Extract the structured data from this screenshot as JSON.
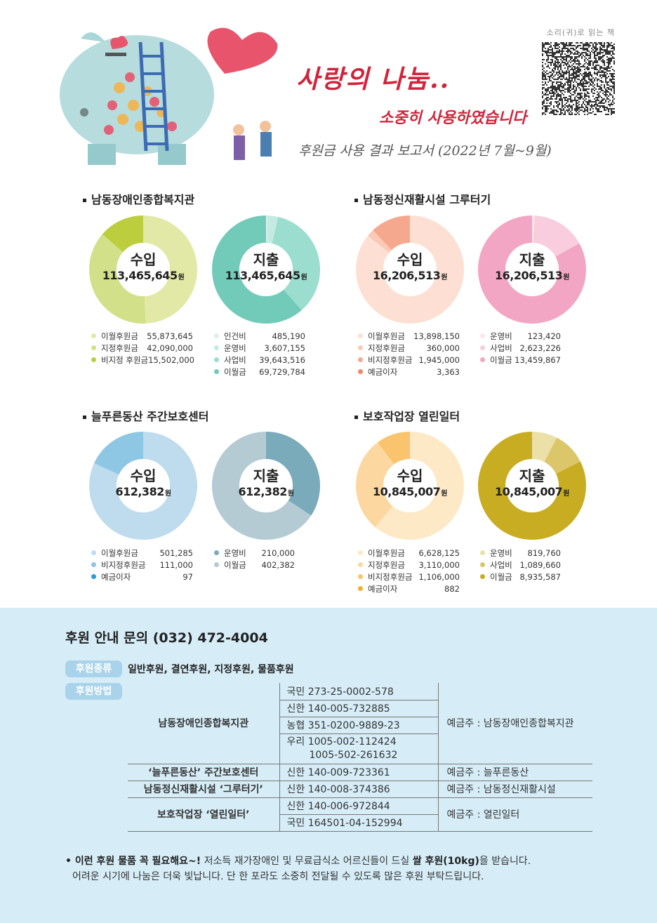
{
  "header": {
    "title": "사랑의 나눔..",
    "subtitle": "소중히 사용하였습니다",
    "report": "후원금 사용 결과 보고서 (2022년 7월~9월)",
    "qr_label": "소리(귀)로 읽는 책"
  },
  "sections": [
    {
      "title": "남동장애인종합복지관",
      "income": {
        "label": "수입",
        "amount": "113,465,645",
        "unit": "원",
        "items": [
          {
            "name": "이월후원금",
            "value": "55,873,645",
            "color": "#e2e9a6"
          },
          {
            "name": "지정후원금",
            "value": "42,090,000",
            "color": "#d2e08a"
          },
          {
            "name": "비지정 후원금",
            "value": "15,502,000",
            "color": "#bccd3d"
          }
        ]
      },
      "expense": {
        "label": "지출",
        "amount": "113,465,645",
        "unit": "원",
        "items": [
          {
            "name": "인건비",
            "value": "485,190",
            "color": "#daf1ec"
          },
          {
            "name": "운영비",
            "value": "3,607,155",
            "color": "#c4ebe2"
          },
          {
            "name": "사업비",
            "value": "39,643,516",
            "color": "#9bded0"
          },
          {
            "name": "이월금",
            "value": "69,729,784",
            "color": "#72cbb9"
          }
        ]
      }
    },
    {
      "title": "남동정신재활시설 그루터기",
      "income": {
        "label": "수입",
        "amount": "16,206,513",
        "unit": "원",
        "items": [
          {
            "name": "이월후원금",
            "value": "13,898,150",
            "color": "#fde0d3"
          },
          {
            "name": "지정후원금",
            "value": "360,000",
            "color": "#fbcab6"
          },
          {
            "name": "비지정후원금",
            "value": "1,945,000",
            "color": "#f6a88f"
          },
          {
            "name": "예금이자",
            "value": "3,363",
            "color": "#ef8769"
          }
        ]
      },
      "expense": {
        "label": "지출",
        "amount": "16,206,513",
        "unit": "원",
        "items": [
          {
            "name": "운영비",
            "value": "123,420",
            "color": "#fde6ee"
          },
          {
            "name": "사업비",
            "value": "2,623,226",
            "color": "#f9cddd"
          },
          {
            "name": "이월금",
            "value": "13,459,867",
            "color": "#f3a6c3"
          }
        ]
      }
    },
    {
      "title": "늘푸른동산 주간보호센터",
      "income": {
        "label": "수입",
        "amount": "612,382",
        "unit": "원",
        "items": [
          {
            "name": "이월후원금",
            "value": "501,285",
            "color": "#bfdcee"
          },
          {
            "name": "비지정후원금",
            "value": "111,000",
            "color": "#8ec7e3"
          },
          {
            "name": "예금이자",
            "value": "97",
            "color": "#2c9ed4"
          }
        ]
      },
      "expense": {
        "label": "지출",
        "amount": "612,382",
        "unit": "원",
        "items": [
          {
            "name": "운영비",
            "value": "210,000",
            "color": "#7aabbb"
          },
          {
            "name": "이월금",
            "value": "402,382",
            "color": "#b4cbd3"
          }
        ]
      }
    },
    {
      "title": "보호작업장 열린일터",
      "income": {
        "label": "수입",
        "amount": "10,845,007",
        "unit": "원",
        "items": [
          {
            "name": "이월후원금",
            "value": "6,628,125",
            "color": "#fde9c5"
          },
          {
            "name": "지정후원금",
            "value": "3,110,000",
            "color": "#fcd8a0"
          },
          {
            "name": "비지정후원금",
            "value": "1,106,000",
            "color": "#f9c46d"
          },
          {
            "name": "예금이자",
            "value": "882",
            "color": "#f4ad2f"
          }
        ]
      },
      "expense": {
        "label": "지출",
        "amount": "10,845,007",
        "unit": "원",
        "items": [
          {
            "name": "운영비",
            "value": "819,760",
            "color": "#ece0a9"
          },
          {
            "name": "사업비",
            "value": "1,089,660",
            "color": "#dcc66a"
          },
          {
            "name": "이월금",
            "value": "8,935,587",
            "color": "#c8ad23"
          }
        ]
      }
    }
  ],
  "chart_data": [
    {
      "type": "pie",
      "title": "남동장애인종합복지관 수입",
      "labels": [
        "이월후원금",
        "지정후원금",
        "비지정 후원금"
      ],
      "values": [
        55873645,
        42090000,
        15502000
      ]
    },
    {
      "type": "pie",
      "title": "남동장애인종합복지관 지출",
      "labels": [
        "인건비",
        "운영비",
        "사업비",
        "이월금"
      ],
      "values": [
        485190,
        3607155,
        39643516,
        69729784
      ]
    },
    {
      "type": "pie",
      "title": "남동정신재활시설 그루터기 수입",
      "labels": [
        "이월후원금",
        "지정후원금",
        "비지정후원금",
        "예금이자"
      ],
      "values": [
        13898150,
        360000,
        1945000,
        3363
      ]
    },
    {
      "type": "pie",
      "title": "남동정신재활시설 그루터기 지출",
      "labels": [
        "운영비",
        "사업비",
        "이월금"
      ],
      "values": [
        123420,
        2623226,
        13459867
      ]
    },
    {
      "type": "pie",
      "title": "늘푸른동산 주간보호센터 수입",
      "labels": [
        "이월후원금",
        "비지정후원금",
        "예금이자"
      ],
      "values": [
        501285,
        111000,
        97
      ]
    },
    {
      "type": "pie",
      "title": "늘푸른동산 주간보호센터 지출",
      "labels": [
        "운영비",
        "이월금"
      ],
      "values": [
        210000,
        402382
      ]
    },
    {
      "type": "pie",
      "title": "보호작업장 열린일터 수입",
      "labels": [
        "이월후원금",
        "지정후원금",
        "비지정후원금",
        "예금이자"
      ],
      "values": [
        6628125,
        3110000,
        1106000,
        882
      ]
    },
    {
      "type": "pie",
      "title": "보호작업장 열린일터 지출",
      "labels": [
        "운영비",
        "사업비",
        "이월금"
      ],
      "values": [
        819760,
        1089660,
        8935587
      ]
    }
  ],
  "support": {
    "inquiry": "후원 안내 문의 (032) 472-4004",
    "type_tag": "후원종류",
    "types": "일반후원, 결연후원, 지정후원, 물품후원",
    "method_tag": "후원방법",
    "org1": "남동장애인종합복지관",
    "org1_acc1": "국민 273-25-0002-578",
    "org1_acc2": "신한 140-005-732885",
    "org1_acc3": "농협 351-0200-9889-23",
    "org1_acc4": "우리 1005-002-112424",
    "org1_acc5": "1005-502-261632",
    "org1_holder": "예금주 : 남동장애인종합복지관",
    "org2": "‘늘푸른동산’ 주간보호센터",
    "org2_acc": "신한 140-009-723361",
    "org2_holder": "예금주 : 늘푸른동산",
    "org3": "남동정신재활시설 ‘그루터기’",
    "org3_acc": "신한 140-008-374386",
    "org3_holder": "예금주 : 남동정신재활시설",
    "org4": "보호작업장 ‘열린일터’",
    "org4_acc1": "신한 140-006-972844",
    "org4_acc2": "국민 164501-04-152994",
    "org4_holder": "예금주 : 열린일터",
    "note_bold1": "• 이런 후원 물품 꼭 필요해요~!",
    "note_mid": " 저소득 재가장애인 및 무료급식소 어르신들이 드실 ",
    "note_bold2": "쌀 후원(10kg)",
    "note_end": "을 받습니다.",
    "note_line2": "어려운 시기에 나눔은 더욱 빛납니다. 단 한 포라도 소중히 전달될 수 있도록 많은 후원 부탁드립니다."
  }
}
